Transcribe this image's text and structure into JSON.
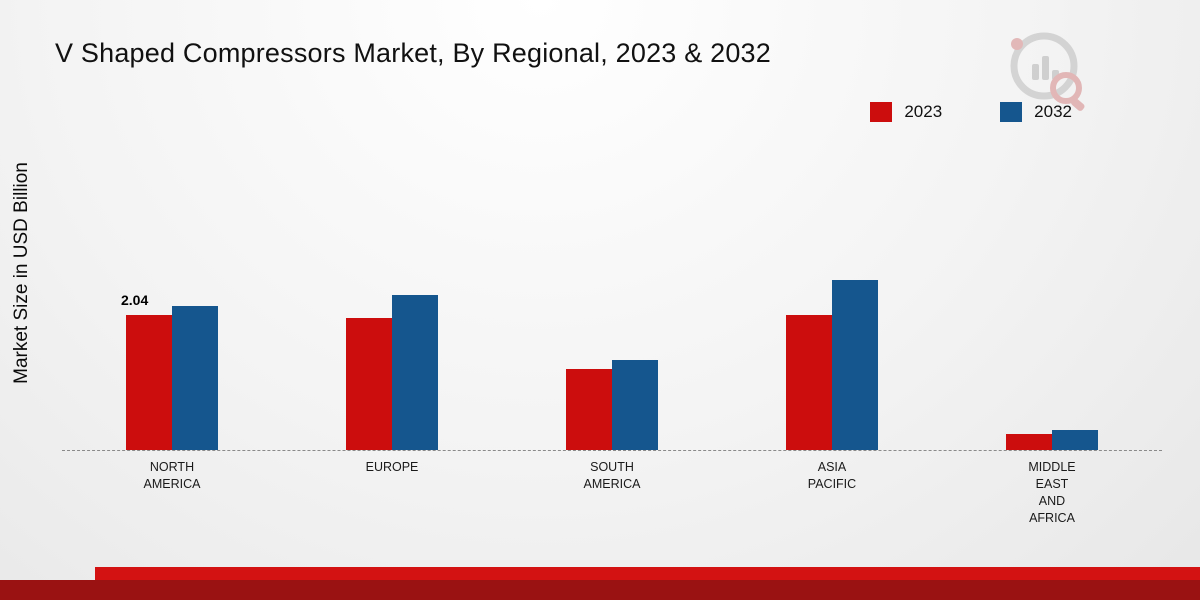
{
  "title": "V Shaped Compressors Market, By Regional, 2023 & 2032",
  "y_axis_label": "Market Size in USD Billion",
  "colors": {
    "series_2023": "#cc0d0d",
    "series_2032": "#15568e",
    "stripe_light": "#d31212",
    "stripe_dark": "#9a1212"
  },
  "legend": {
    "position": "top-right",
    "items": [
      {
        "label": "2023",
        "color": "#cc0d0d"
      },
      {
        "label": "2032",
        "color": "#15568e"
      }
    ]
  },
  "logo_name": "market-research-logo",
  "chart_data": {
    "type": "bar",
    "title": "V Shaped Compressors Market, By Regional, 2023 & 2032",
    "xlabel": "",
    "ylabel": "Market Size in USD Billion",
    "ylim": [
      0,
      3
    ],
    "grid": false,
    "legend_position": "top-right",
    "categories": [
      "NORTH AMERICA",
      "EUROPE",
      "SOUTH AMERICA",
      "ASIA PACIFIC",
      "MIDDLE EAST AND AFRICA"
    ],
    "category_label_lines": [
      [
        "NORTH",
        "AMERICA"
      ],
      [
        "EUROPE"
      ],
      [
        "SOUTH",
        "AMERICA"
      ],
      [
        "ASIA",
        "PACIFIC"
      ],
      [
        "MIDDLE",
        "EAST",
        "AND",
        "AFRICA"
      ]
    ],
    "series": [
      {
        "name": "2023",
        "color": "#cc0d0d",
        "values": [
          2.04,
          2.0,
          1.22,
          2.05,
          0.24
        ]
      },
      {
        "name": "2032",
        "color": "#15568e",
        "values": [
          2.18,
          2.35,
          1.36,
          2.58,
          0.31
        ]
      }
    ],
    "annotation": {
      "series_index": 0,
      "category_index": 0,
      "text": "2.04"
    }
  }
}
